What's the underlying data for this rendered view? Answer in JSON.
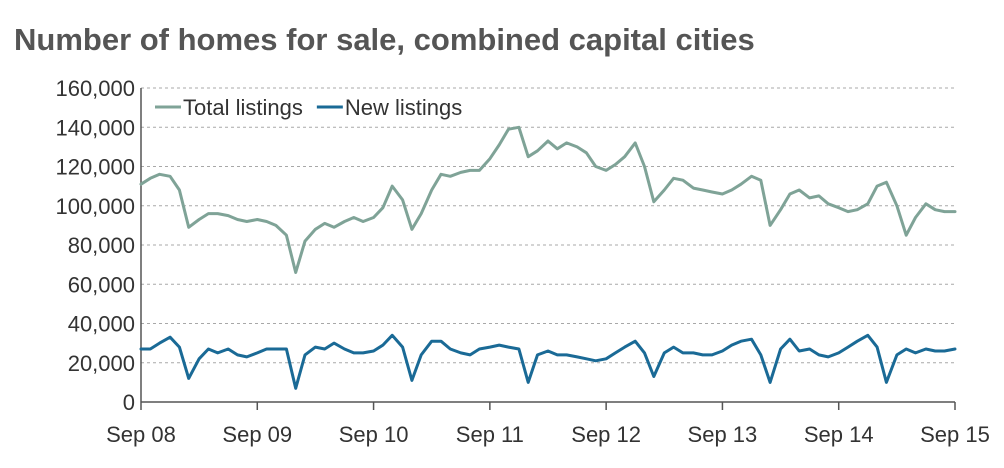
{
  "chart_data": {
    "type": "line",
    "title": "Number of homes for sale, combined capital cities",
    "xlabel": "",
    "ylabel": "",
    "ylim": [
      0,
      160000
    ],
    "yticks": [
      0,
      20000,
      40000,
      60000,
      80000,
      100000,
      120000,
      140000,
      160000
    ],
    "ytick_labels": [
      "0",
      "20,000",
      "40,000",
      "60,000",
      "80,000",
      "100,000",
      "120,000",
      "140,000",
      "160,000"
    ],
    "xlim": [
      2008.67,
      2015.67
    ],
    "xticks": [
      2008.67,
      2009.67,
      2010.67,
      2011.67,
      2012.67,
      2013.67,
      2014.67,
      2015.67
    ],
    "xtick_labels": [
      "Sep 08",
      "Sep 09",
      "Sep 10",
      "Sep 11",
      "Sep 12",
      "Sep 13",
      "Sep 14",
      "Sep 15"
    ],
    "grid": true,
    "legend": "top-left",
    "series": [
      {
        "name": "Total listings",
        "color": "#7fa397",
        "points": [
          [
            2008.67,
            111000
          ],
          [
            2008.75,
            114000
          ],
          [
            2008.83,
            116000
          ],
          [
            2008.92,
            115000
          ],
          [
            2009.0,
            108000
          ],
          [
            2009.08,
            89000
          ],
          [
            2009.17,
            93000
          ],
          [
            2009.25,
            96000
          ],
          [
            2009.33,
            96000
          ],
          [
            2009.42,
            95000
          ],
          [
            2009.5,
            93000
          ],
          [
            2009.58,
            92000
          ],
          [
            2009.67,
            93000
          ],
          [
            2009.75,
            92000
          ],
          [
            2009.83,
            90000
          ],
          [
            2009.92,
            85000
          ],
          [
            2010.0,
            66000
          ],
          [
            2010.08,
            82000
          ],
          [
            2010.17,
            88000
          ],
          [
            2010.25,
            91000
          ],
          [
            2010.33,
            89000
          ],
          [
            2010.42,
            92000
          ],
          [
            2010.5,
            94000
          ],
          [
            2010.58,
            92000
          ],
          [
            2010.67,
            94000
          ],
          [
            2010.75,
            99000
          ],
          [
            2010.83,
            110000
          ],
          [
            2010.92,
            103000
          ],
          [
            2011.0,
            88000
          ],
          [
            2011.08,
            96000
          ],
          [
            2011.17,
            108000
          ],
          [
            2011.25,
            116000
          ],
          [
            2011.33,
            115000
          ],
          [
            2011.42,
            117000
          ],
          [
            2011.5,
            118000
          ],
          [
            2011.58,
            118000
          ],
          [
            2011.67,
            124000
          ],
          [
            2011.75,
            131000
          ],
          [
            2011.83,
            139000
          ],
          [
            2011.92,
            140000
          ],
          [
            2012.0,
            125000
          ],
          [
            2012.08,
            128000
          ],
          [
            2012.17,
            133000
          ],
          [
            2012.25,
            129000
          ],
          [
            2012.33,
            132000
          ],
          [
            2012.42,
            130000
          ],
          [
            2012.5,
            127000
          ],
          [
            2012.58,
            120000
          ],
          [
            2012.67,
            118000
          ],
          [
            2012.75,
            121000
          ],
          [
            2012.83,
            125000
          ],
          [
            2012.92,
            132000
          ],
          [
            2013.0,
            120000
          ],
          [
            2013.08,
            102000
          ],
          [
            2013.17,
            108000
          ],
          [
            2013.25,
            114000
          ],
          [
            2013.33,
            113000
          ],
          [
            2013.42,
            109000
          ],
          [
            2013.5,
            108000
          ],
          [
            2013.58,
            107000
          ],
          [
            2013.67,
            106000
          ],
          [
            2013.75,
            108000
          ],
          [
            2013.83,
            111000
          ],
          [
            2013.92,
            115000
          ],
          [
            2014.0,
            113000
          ],
          [
            2014.08,
            90000
          ],
          [
            2014.17,
            98000
          ],
          [
            2014.25,
            106000
          ],
          [
            2014.33,
            108000
          ],
          [
            2014.42,
            104000
          ],
          [
            2014.5,
            105000
          ],
          [
            2014.58,
            101000
          ],
          [
            2014.67,
            99000
          ],
          [
            2014.75,
            97000
          ],
          [
            2014.83,
            98000
          ],
          [
            2014.92,
            101000
          ],
          [
            2015.0,
            110000
          ],
          [
            2015.08,
            112000
          ],
          [
            2015.17,
            100000
          ],
          [
            2015.25,
            85000
          ],
          [
            2015.33,
            94000
          ],
          [
            2015.42,
            101000
          ],
          [
            2015.5,
            98000
          ],
          [
            2015.58,
            97000
          ],
          [
            2015.67,
            97000
          ]
        ]
      },
      {
        "name": "New listings",
        "color": "#1a6a96",
        "points": [
          [
            2008.67,
            27000
          ],
          [
            2008.75,
            27000
          ],
          [
            2008.83,
            30000
          ],
          [
            2008.92,
            33000
          ],
          [
            2009.0,
            28000
          ],
          [
            2009.08,
            12000
          ],
          [
            2009.17,
            22000
          ],
          [
            2009.25,
            27000
          ],
          [
            2009.33,
            25000
          ],
          [
            2009.42,
            27000
          ],
          [
            2009.5,
            24000
          ],
          [
            2009.58,
            23000
          ],
          [
            2009.67,
            25000
          ],
          [
            2009.75,
            27000
          ],
          [
            2009.83,
            27000
          ],
          [
            2009.92,
            27000
          ],
          [
            2010.0,
            7000
          ],
          [
            2010.08,
            24000
          ],
          [
            2010.17,
            28000
          ],
          [
            2010.25,
            27000
          ],
          [
            2010.33,
            30000
          ],
          [
            2010.42,
            27000
          ],
          [
            2010.5,
            25000
          ],
          [
            2010.58,
            25000
          ],
          [
            2010.67,
            26000
          ],
          [
            2010.75,
            29000
          ],
          [
            2010.83,
            34000
          ],
          [
            2010.92,
            28000
          ],
          [
            2011.0,
            11000
          ],
          [
            2011.08,
            24000
          ],
          [
            2011.17,
            31000
          ],
          [
            2011.25,
            31000
          ],
          [
            2011.33,
            27000
          ],
          [
            2011.42,
            25000
          ],
          [
            2011.5,
            24000
          ],
          [
            2011.58,
            27000
          ],
          [
            2011.67,
            28000
          ],
          [
            2011.75,
            29000
          ],
          [
            2011.83,
            28000
          ],
          [
            2011.92,
            27000
          ],
          [
            2012.0,
            10000
          ],
          [
            2012.08,
            24000
          ],
          [
            2012.17,
            26000
          ],
          [
            2012.25,
            24000
          ],
          [
            2012.33,
            24000
          ],
          [
            2012.42,
            23000
          ],
          [
            2012.5,
            22000
          ],
          [
            2012.58,
            21000
          ],
          [
            2012.67,
            22000
          ],
          [
            2012.75,
            25000
          ],
          [
            2012.83,
            28000
          ],
          [
            2012.92,
            31000
          ],
          [
            2013.0,
            25000
          ],
          [
            2013.08,
            13000
          ],
          [
            2013.17,
            25000
          ],
          [
            2013.25,
            28000
          ],
          [
            2013.33,
            25000
          ],
          [
            2013.42,
            25000
          ],
          [
            2013.5,
            24000
          ],
          [
            2013.58,
            24000
          ],
          [
            2013.67,
            26000
          ],
          [
            2013.75,
            29000
          ],
          [
            2013.83,
            31000
          ],
          [
            2013.92,
            32000
          ],
          [
            2014.0,
            24000
          ],
          [
            2014.08,
            10000
          ],
          [
            2014.17,
            27000
          ],
          [
            2014.25,
            32000
          ],
          [
            2014.33,
            26000
          ],
          [
            2014.42,
            27000
          ],
          [
            2014.5,
            24000
          ],
          [
            2014.58,
            23000
          ],
          [
            2014.67,
            25000
          ],
          [
            2014.75,
            28000
          ],
          [
            2014.83,
            31000
          ],
          [
            2014.92,
            34000
          ],
          [
            2015.0,
            28000
          ],
          [
            2015.08,
            10000
          ],
          [
            2015.17,
            24000
          ],
          [
            2015.25,
            27000
          ],
          [
            2015.33,
            25000
          ],
          [
            2015.42,
            27000
          ],
          [
            2015.5,
            26000
          ],
          [
            2015.58,
            26000
          ],
          [
            2015.67,
            27000
          ]
        ]
      }
    ]
  }
}
